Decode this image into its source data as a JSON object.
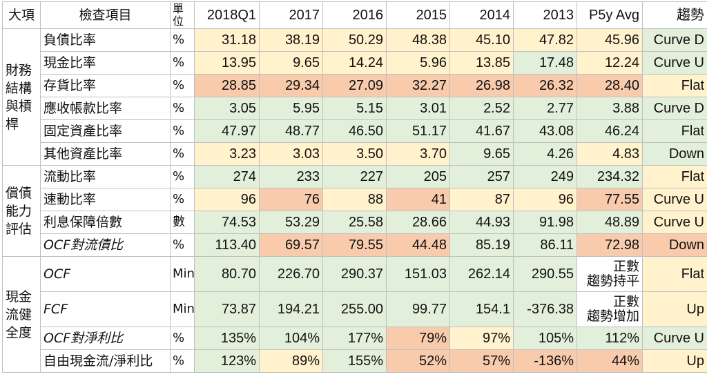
{
  "headers": [
    "大項",
    "檢查項目",
    "單位",
    "2018Q1",
    "2017",
    "2016",
    "2015",
    "2014",
    "2013",
    "P5y Avg",
    "趨勢"
  ],
  "sections": [
    {
      "category": "財務結構與槓桿",
      "rows": [
        {
          "item": "負債比率",
          "italic": false,
          "unit": "%",
          "values": [
            "31.18",
            "38.19",
            "50.29",
            "48.38",
            "45.10",
            "47.82",
            "45.96"
          ],
          "colors": [
            "y",
            "y",
            "y",
            "y",
            "y",
            "y",
            "y"
          ],
          "trend": "Curve D",
          "trend_color": "g"
        },
        {
          "item": "現金比率",
          "italic": false,
          "unit": "%",
          "values": [
            "13.95",
            "9.65",
            "14.24",
            "5.96",
            "13.85",
            "17.48",
            "12.24"
          ],
          "colors": [
            "y",
            "y",
            "y",
            "y",
            "y",
            "g",
            "y"
          ],
          "trend": "Curve U",
          "trend_color": "g"
        },
        {
          "item": "存貨比率",
          "italic": false,
          "unit": "%",
          "values": [
            "28.85",
            "29.34",
            "27.09",
            "32.27",
            "26.98",
            "26.32",
            "28.40"
          ],
          "colors": [
            "o",
            "o",
            "o",
            "o",
            "o",
            "o",
            "o"
          ],
          "trend": "Flat",
          "trend_color": "y"
        },
        {
          "item": "應收帳款比率",
          "italic": false,
          "unit": "%",
          "values": [
            "3.05",
            "5.95",
            "5.15",
            "3.01",
            "2.52",
            "2.77",
            "3.88"
          ],
          "colors": [
            "g",
            "g",
            "g",
            "g",
            "g",
            "g",
            "g"
          ],
          "trend": "Curve D",
          "trend_color": "g"
        },
        {
          "item": "固定資產比率",
          "italic": false,
          "unit": "%",
          "values": [
            "47.97",
            "48.77",
            "46.50",
            "51.17",
            "41.67",
            "43.08",
            "46.24"
          ],
          "colors": [
            "g",
            "g",
            "g",
            "g",
            "g",
            "g",
            "g"
          ],
          "trend": "Flat",
          "trend_color": "g"
        },
        {
          "item": "其他資產比率",
          "italic": false,
          "unit": "%",
          "values": [
            "3.23",
            "3.03",
            "3.50",
            "3.70",
            "9.65",
            "4.26",
            "4.83"
          ],
          "colors": [
            "y",
            "y",
            "y",
            "y",
            "g",
            "g",
            "y"
          ],
          "trend": "Down",
          "trend_color": "g"
        }
      ]
    },
    {
      "category": "償債能力評估",
      "rows": [
        {
          "item": "流動比率",
          "italic": false,
          "unit": "%",
          "values": [
            "274",
            "233",
            "227",
            "205",
            "257",
            "249",
            "234.32"
          ],
          "colors": [
            "g",
            "g",
            "g",
            "g",
            "g",
            "g",
            "g"
          ],
          "trend": "Flat",
          "trend_color": "y"
        },
        {
          "item": "速動比率",
          "italic": false,
          "unit": "%",
          "values": [
            "96",
            "76",
            "88",
            "41",
            "87",
            "96",
            "77.55"
          ],
          "colors": [
            "y",
            "o",
            "y",
            "o",
            "y",
            "y",
            "o"
          ],
          "trend": "Curve U",
          "trend_color": "y"
        },
        {
          "item": "利息保障倍數",
          "italic": false,
          "unit": "數",
          "values": [
            "74.53",
            "53.29",
            "25.58",
            "28.66",
            "44.93",
            "91.98",
            "48.89"
          ],
          "colors": [
            "g",
            "g",
            "g",
            "g",
            "g",
            "g",
            "g"
          ],
          "trend": "Curve U",
          "trend_color": "y"
        },
        {
          "item": "OCF對流債比",
          "italic": true,
          "unit": "%",
          "values": [
            "113.40",
            "69.57",
            "79.55",
            "44.48",
            "85.19",
            "86.11",
            "72.98"
          ],
          "colors": [
            "g",
            "o",
            "o",
            "o",
            "g",
            "g",
            "o"
          ],
          "trend": "Down",
          "trend_color": "o"
        }
      ]
    },
    {
      "category": "現金流健全度",
      "rows": [
        {
          "item": "OCF",
          "italic": true,
          "unit": "Min",
          "values": [
            "80.70",
            "226.70",
            "290.37",
            "151.03",
            "262.14",
            "290.55"
          ],
          "colors": [
            "g",
            "g",
            "g",
            "g",
            "g",
            "g"
          ],
          "avg_note": [
            "正數",
            "趨勢持平"
          ],
          "avg_color": "w",
          "trend": "Flat",
          "trend_color": "y",
          "tall": true
        },
        {
          "item": "FCF",
          "italic": true,
          "unit": "Min",
          "values": [
            "73.87",
            "194.21",
            "255.00",
            "99.77",
            "154.1",
            "-376.38"
          ],
          "colors": [
            "g",
            "g",
            "g",
            "g",
            "g",
            "g"
          ],
          "avg_note": [
            "正數",
            "趨勢增加"
          ],
          "avg_color": "w",
          "trend": "Up",
          "trend_color": "y",
          "tall": true
        },
        {
          "item": "OCF對淨利比",
          "italic": true,
          "unit": "%",
          "values": [
            "135%",
            "104%",
            "177%",
            "79%",
            "97%",
            "105%",
            "112%"
          ],
          "colors": [
            "g",
            "g",
            "g",
            "o",
            "y",
            "g",
            "g"
          ],
          "trend": "Curve U",
          "trend_color": "g"
        },
        {
          "item": "自由現金流/淨利比",
          "italic": false,
          "unit": "%",
          "values": [
            "123%",
            "89%",
            "155%",
            "52%",
            "57%",
            "-136%",
            "44%"
          ],
          "colors": [
            "g",
            "y",
            "g",
            "o",
            "o",
            "o",
            "o"
          ],
          "trend": "Up",
          "trend_color": "y"
        }
      ]
    }
  ],
  "colors": {
    "green": "#e2efda",
    "yellow": "#fff2cc",
    "orange": "#f8cbad",
    "border": "#bfbfbf"
  }
}
